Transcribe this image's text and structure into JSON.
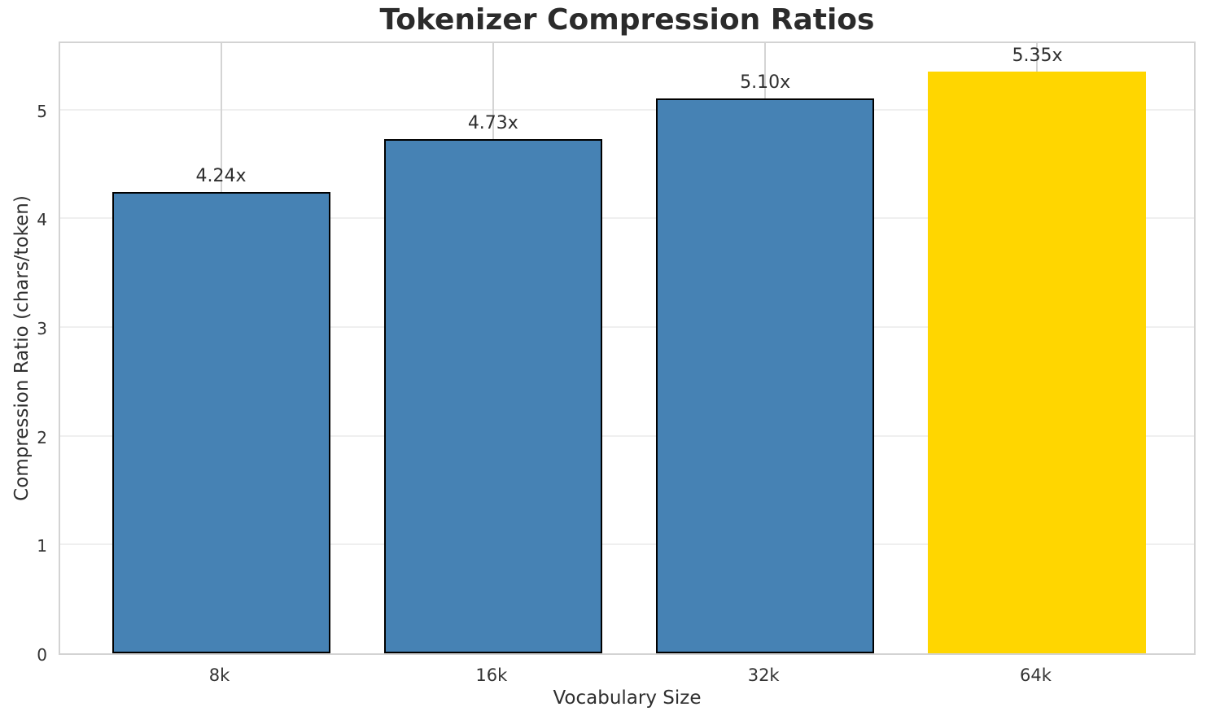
{
  "chart_data": {
    "type": "bar",
    "title": "Tokenizer Compression Ratios",
    "xlabel": "Vocabulary Size",
    "ylabel": "Compression Ratio (chars/token)",
    "categories": [
      "8k",
      "16k",
      "32k",
      "64k"
    ],
    "values": [
      4.24,
      4.73,
      5.1,
      5.35
    ],
    "bar_labels": [
      "4.24x",
      "4.73x",
      "5.10x",
      "5.35x"
    ],
    "yticks": [
      0,
      1,
      2,
      3,
      4,
      5
    ],
    "ylim": [
      0,
      5.64
    ],
    "grid": true,
    "legend": "none",
    "base_bar_color": "#4682b4",
    "highlight_bar_color": "#ffd600",
    "bar_colors": [
      "#4682b4",
      "#4682b4",
      "#4682b4",
      "#ffd600"
    ],
    "bar_edge_colors": [
      "#000000",
      "#000000",
      "#000000",
      "none"
    ]
  }
}
